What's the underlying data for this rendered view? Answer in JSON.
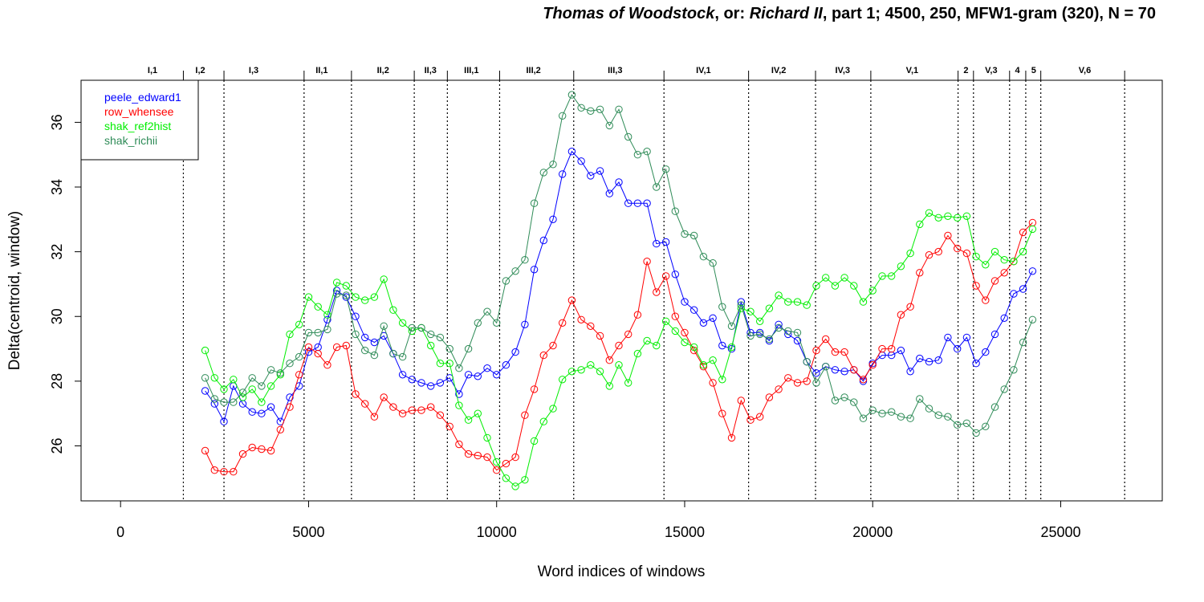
{
  "title": {
    "part1": "Thomas of Woodstock",
    "part2": ", or: ",
    "part3": "Richard II",
    "part4": ", part 1; 4500, 250, MFW1-gram (320), N = 70"
  },
  "chart_data": {
    "type": "line",
    "xlabel": "Word indices of windows",
    "ylabel": "Delta(centroid, window)",
    "xlim": [
      -1050,
      27700
    ],
    "ylim": [
      24.3,
      37.3
    ],
    "xticks": [
      0,
      5000,
      10000,
      15000,
      20000,
      25000
    ],
    "xtick_labels": [
      "0",
      "5000",
      "10000",
      "15000",
      "20000",
      "25000"
    ],
    "yticks": [
      26,
      28,
      30,
      32,
      34,
      36
    ],
    "ytick_labels": [
      "26",
      "28",
      "30",
      "32",
      "34",
      "36"
    ],
    "legend_position": "top-left",
    "scene_boundaries": [
      1670,
      2750,
      4880,
      6140,
      7810,
      8690,
      10080,
      12050,
      14450,
      16700,
      18480,
      19950,
      22270,
      22680,
      23640,
      24070,
      24470,
      26700
    ],
    "scene_labels": [
      {
        "label": "I,1",
        "x": 850
      },
      {
        "label": "I,2",
        "x": 2120
      },
      {
        "label": "I,3",
        "x": 3540
      },
      {
        "label": "II,1",
        "x": 5350
      },
      {
        "label": "II,2",
        "x": 6980
      },
      {
        "label": "II,3",
        "x": 8240
      },
      {
        "label": "III,1",
        "x": 9330
      },
      {
        "label": "III,2",
        "x": 10980
      },
      {
        "label": "III,3",
        "x": 13150
      },
      {
        "label": "IV,1",
        "x": 15500
      },
      {
        "label": "IV,2",
        "x": 17500
      },
      {
        "label": "IV,3",
        "x": 19200
      },
      {
        "label": "V,1",
        "x": 21050
      },
      {
        "label": "2",
        "x": 22480
      },
      {
        "label": "V,3",
        "x": 23150
      },
      {
        "label": "4",
        "x": 23850
      },
      {
        "label": "5",
        "x": 24280
      },
      {
        "label": "V,6",
        "x": 25640
      }
    ],
    "x": [
      2250,
      2500,
      2750,
      3000,
      3250,
      3500,
      3750,
      4000,
      4250,
      4500,
      4750,
      5000,
      5250,
      5500,
      5750,
      6000,
      6250,
      6500,
      6750,
      7000,
      7250,
      7500,
      7750,
      8000,
      8250,
      8500,
      8750,
      9000,
      9250,
      9500,
      9750,
      10000,
      10250,
      10500,
      10750,
      11000,
      11250,
      11500,
      11750,
      12000,
      12250,
      12500,
      12750,
      13000,
      13250,
      13500,
      13750,
      14000,
      14250,
      14500,
      14750,
      15000,
      15250,
      15500,
      15750,
      16000,
      16250,
      16500,
      16750,
      17000,
      17250,
      17500,
      17750,
      18000,
      18250,
      18500,
      18750,
      19000,
      19250,
      19500,
      19750,
      20000,
      20250,
      20500,
      20750,
      21000,
      21250,
      21500,
      21750,
      22000,
      22250,
      22500,
      22750,
      23000,
      23250,
      23500,
      23750,
      24000,
      24250
    ],
    "series": [
      {
        "name": "peele_edward1",
        "color": "#0000ff",
        "values": [
          27.7,
          27.3,
          26.75,
          27.85,
          27.3,
          27.05,
          27.0,
          27.2,
          26.75,
          27.5,
          27.85,
          28.9,
          29.05,
          29.9,
          30.8,
          30.6,
          30.0,
          29.35,
          29.2,
          29.4,
          28.85,
          28.2,
          28.05,
          27.95,
          27.85,
          27.95,
          28.1,
          27.6,
          28.2,
          28.15,
          28.4,
          28.2,
          28.5,
          28.9,
          29.75,
          31.45,
          32.35,
          33.0,
          34.4,
          35.1,
          34.8,
          34.35,
          34.5,
          33.8,
          34.15,
          33.5,
          33.5,
          33.5,
          32.25,
          32.3,
          31.3,
          30.45,
          30.2,
          29.8,
          29.95,
          29.1,
          29.0,
          30.45,
          29.5,
          29.5,
          29.25,
          29.75,
          29.45,
          29.25,
          28.6,
          28.25,
          28.45,
          28.35,
          28.3,
          28.35,
          28.0,
          28.55,
          28.8,
          28.8,
          28.95,
          28.3,
          28.7,
          28.6,
          28.65,
          29.35,
          29.0,
          29.35,
          28.55,
          28.9,
          29.45,
          29.95,
          30.7,
          30.85,
          31.4
        ]
      },
      {
        "name": "row_whensee",
        "color": "#ff0000",
        "values": [
          25.85,
          25.25,
          25.2,
          25.2,
          25.75,
          25.95,
          25.9,
          25.85,
          26.5,
          27.2,
          28.2,
          29.05,
          28.85,
          28.5,
          29.05,
          29.1,
          27.6,
          27.3,
          26.9,
          27.5,
          27.2,
          27.0,
          27.1,
          27.1,
          27.2,
          26.95,
          26.6,
          26.05,
          25.75,
          25.7,
          25.65,
          25.25,
          25.45,
          25.65,
          26.95,
          27.75,
          28.8,
          29.1,
          29.8,
          30.5,
          29.9,
          29.7,
          29.4,
          28.65,
          29.1,
          29.45,
          30.05,
          31.7,
          30.75,
          31.25,
          30.0,
          29.5,
          28.95,
          28.45,
          27.95,
          27.0,
          26.25,
          27.4,
          26.8,
          26.9,
          27.5,
          27.75,
          28.1,
          27.95,
          28.0,
          28.95,
          29.3,
          28.9,
          28.9,
          28.35,
          28.05,
          28.5,
          29.0,
          29.0,
          30.05,
          30.3,
          31.35,
          31.9,
          32.0,
          32.5,
          32.1,
          31.95,
          30.95,
          30.5,
          31.1,
          31.35,
          31.7,
          32.6,
          32.9
        ]
      },
      {
        "name": "shak_ref2hist",
        "color": "#00ee00",
        "values": [
          28.95,
          28.1,
          27.75,
          28.05,
          27.5,
          27.75,
          27.35,
          27.85,
          28.2,
          29.45,
          29.75,
          30.6,
          30.3,
          30.05,
          31.05,
          30.95,
          30.6,
          30.5,
          30.6,
          31.15,
          30.2,
          29.8,
          29.55,
          29.65,
          29.1,
          28.55,
          28.55,
          27.25,
          26.8,
          27.0,
          26.25,
          25.5,
          25.0,
          24.75,
          24.95,
          26.15,
          26.75,
          27.15,
          28.05,
          28.3,
          28.35,
          28.5,
          28.3,
          27.85,
          28.5,
          27.95,
          28.85,
          29.25,
          29.1,
          29.85,
          29.55,
          29.2,
          29.05,
          28.5,
          28.65,
          28.05,
          29.05,
          30.25,
          30.15,
          29.85,
          30.25,
          30.65,
          30.45,
          30.45,
          30.35,
          30.95,
          31.2,
          30.95,
          31.2,
          30.95,
          30.45,
          30.8,
          31.25,
          31.25,
          31.55,
          31.95,
          32.85,
          33.2,
          33.05,
          33.1,
          33.05,
          33.1,
          31.85,
          31.6,
          32.0,
          31.75,
          31.7,
          32.0,
          32.7
        ]
      },
      {
        "name": "shak_richii",
        "color": "#2e8b57",
        "values": [
          28.1,
          27.45,
          27.35,
          27.35,
          27.65,
          28.1,
          27.85,
          28.35,
          28.25,
          28.55,
          28.75,
          29.5,
          29.5,
          29.6,
          30.7,
          30.65,
          29.45,
          28.95,
          28.8,
          29.7,
          28.85,
          28.75,
          29.65,
          29.65,
          29.45,
          29.35,
          29.0,
          28.4,
          29.0,
          29.8,
          30.15,
          29.8,
          31.1,
          31.4,
          31.75,
          33.5,
          34.45,
          34.7,
          36.2,
          36.85,
          36.45,
          36.35,
          36.4,
          35.9,
          36.4,
          35.55,
          35.0,
          35.1,
          34.0,
          34.55,
          33.25,
          32.55,
          32.5,
          31.85,
          31.65,
          30.3,
          29.7,
          30.35,
          29.4,
          29.45,
          29.3,
          29.65,
          29.55,
          29.5,
          28.6,
          27.95,
          28.45,
          27.4,
          27.5,
          27.35,
          26.85,
          27.1,
          27.0,
          27.05,
          26.9,
          26.85,
          27.45,
          27.15,
          26.95,
          26.9,
          26.65,
          26.7,
          26.4,
          26.6,
          27.2,
          27.75,
          28.35,
          29.2,
          29.9
        ]
      }
    ]
  }
}
